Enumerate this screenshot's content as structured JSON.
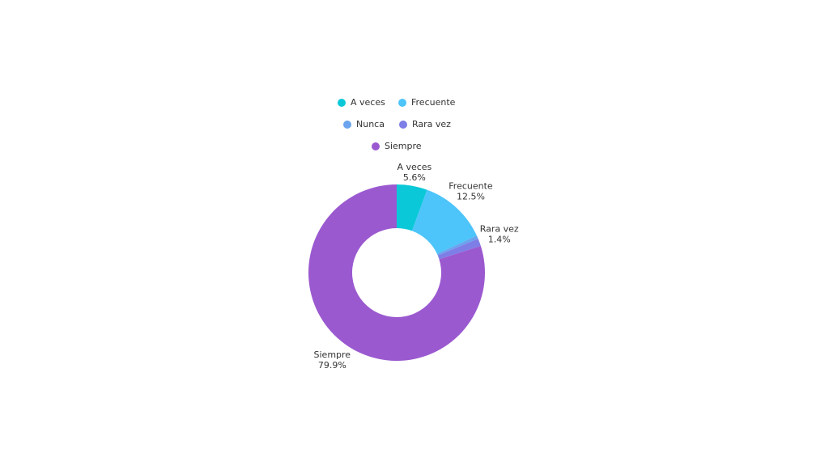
{
  "chart_data": {
    "type": "donut",
    "categories": [
      "A veces",
      "Frecuente",
      "Nunca",
      "Rara vez",
      "Siempre"
    ],
    "values": [
      5.6,
      12.5,
      0.6,
      1.4,
      79.9
    ],
    "value_labels": [
      "5.6%",
      "12.5%",
      null,
      "1.4%",
      "79.9%"
    ],
    "colors": [
      "#0bc8d8",
      "#4dc4fa",
      "#6aa3ee",
      "#7d7ee6",
      "#9b59d0"
    ]
  }
}
